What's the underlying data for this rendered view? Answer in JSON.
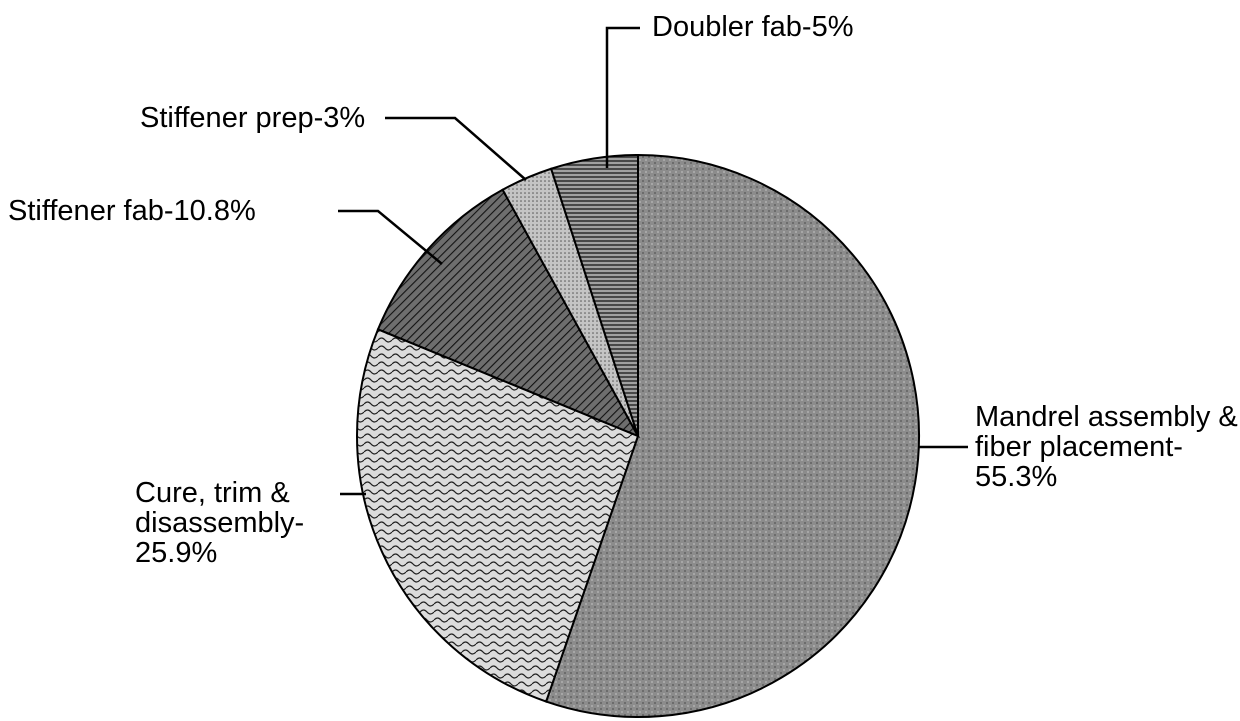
{
  "chart_data": {
    "type": "pie",
    "categories": [
      "Mandrel assembly & fiber placement-",
      "Cure, trim & disassembly-",
      "Stiffener fab-",
      "Stiffener prep-",
      "Doubler fab-"
    ],
    "values": [
      55.3,
      25.9,
      10.8,
      3,
      5
    ],
    "value_labels": [
      "55.3%",
      "25.9%",
      "10.8%",
      "3%",
      "5%"
    ],
    "colors": [
      "#8c8c8c",
      "#dcdcdc",
      "#6e6e6e",
      "#c4c4c4",
      "#a0a0a0"
    ]
  }
}
